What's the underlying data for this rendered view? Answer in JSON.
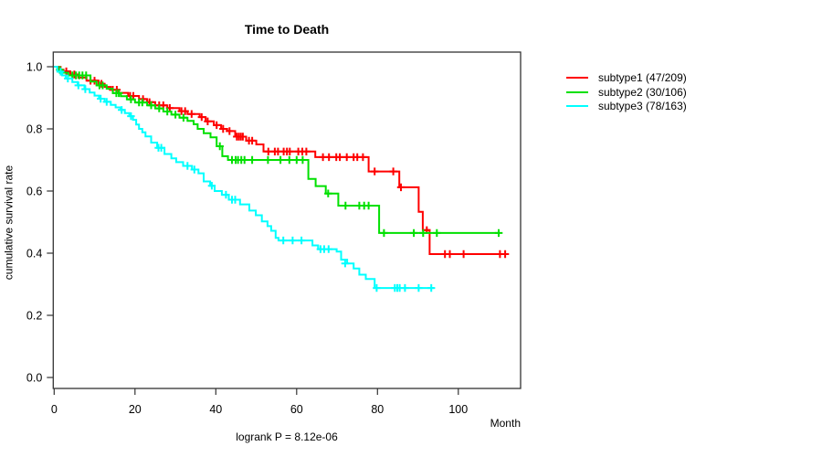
{
  "chart_data": {
    "type": "line",
    "subtype": "kaplan-meier-step",
    "title": "Time to Death",
    "xlabel": "Month",
    "ylabel": "cumulative survival rate",
    "annotation": "logrank P = 8.12e-06",
    "x_ticks": [
      0,
      20,
      40,
      60,
      80,
      100
    ],
    "y_ticks": [
      1.0,
      0.8,
      0.6,
      0.4,
      0.2,
      0.0
    ],
    "xlim": [
      0,
      115
    ],
    "ylim": [
      0,
      1.02
    ],
    "grid": false,
    "legend_position": "right",
    "series": [
      {
        "name": "subtype1",
        "legend_label": "subtype1 (47/209)",
        "events": 47,
        "n": 209,
        "color": "#ff0000",
        "end_month": 112.1,
        "steps": [
          [
            0,
            1.0
          ],
          [
            1,
            0.99
          ],
          [
            2.3,
            0.985
          ],
          [
            4,
            0.975
          ],
          [
            6,
            0.965
          ],
          [
            8,
            0.955
          ],
          [
            11,
            0.945
          ],
          [
            12.5,
            0.935
          ],
          [
            14,
            0.926
          ],
          [
            16,
            0.916
          ],
          [
            18.3,
            0.906
          ],
          [
            21,
            0.896
          ],
          [
            23,
            0.886
          ],
          [
            25,
            0.876
          ],
          [
            28,
            0.867
          ],
          [
            31,
            0.857
          ],
          [
            33,
            0.848
          ],
          [
            36,
            0.838
          ],
          [
            37.5,
            0.824
          ],
          [
            39.5,
            0.812
          ],
          [
            41.3,
            0.8
          ],
          [
            42.8,
            0.793
          ],
          [
            44.8,
            0.775
          ],
          [
            47.5,
            0.762
          ],
          [
            50,
            0.75
          ],
          [
            51.8,
            0.727
          ],
          [
            64.6,
            0.709
          ],
          [
            77.8,
            0.663
          ],
          [
            85.4,
            0.612
          ],
          [
            90.2,
            0.533
          ],
          [
            91.2,
            0.474
          ],
          [
            92.9,
            0.397
          ]
        ],
        "censors": [
          [
            1.6,
            0.99
          ],
          [
            3,
            0.985
          ],
          [
            5,
            0.975
          ],
          [
            9,
            0.955
          ],
          [
            10,
            0.955
          ],
          [
            11.7,
            0.945
          ],
          [
            14.5,
            0.926
          ],
          [
            15.5,
            0.926
          ],
          [
            18.8,
            0.906
          ],
          [
            19.6,
            0.906
          ],
          [
            22,
            0.896
          ],
          [
            23.6,
            0.886
          ],
          [
            26,
            0.876
          ],
          [
            27,
            0.876
          ],
          [
            28.6,
            0.867
          ],
          [
            31.5,
            0.857
          ],
          [
            32.4,
            0.857
          ],
          [
            34,
            0.848
          ],
          [
            36.5,
            0.838
          ],
          [
            38,
            0.824
          ],
          [
            40.2,
            0.812
          ],
          [
            41.8,
            0.8
          ],
          [
            43.4,
            0.793
          ],
          [
            45.2,
            0.775
          ],
          [
            45.7,
            0.775
          ],
          [
            46.2,
            0.775
          ],
          [
            46.7,
            0.775
          ],
          [
            48.2,
            0.762
          ],
          [
            49,
            0.762
          ],
          [
            53,
            0.727
          ],
          [
            54.6,
            0.727
          ],
          [
            55.4,
            0.727
          ],
          [
            56.8,
            0.727
          ],
          [
            57.6,
            0.727
          ],
          [
            58.3,
            0.727
          ],
          [
            60.4,
            0.727
          ],
          [
            61.4,
            0.727
          ],
          [
            62.4,
            0.727
          ],
          [
            66.5,
            0.709
          ],
          [
            68,
            0.709
          ],
          [
            69.8,
            0.709
          ],
          [
            70.7,
            0.709
          ],
          [
            72.4,
            0.709
          ],
          [
            74.1,
            0.709
          ],
          [
            75,
            0.709
          ],
          [
            76.4,
            0.709
          ],
          [
            79.3,
            0.663
          ],
          [
            83.9,
            0.663
          ],
          [
            85.8,
            0.612
          ],
          [
            92.2,
            0.474
          ],
          [
            96.7,
            0.397
          ],
          [
            97.9,
            0.397
          ],
          [
            101.3,
            0.397
          ],
          [
            110.3,
            0.397
          ],
          [
            111.6,
            0.397
          ]
        ]
      },
      {
        "name": "subtype2",
        "legend_label": "subtype2 (30/106)",
        "events": 30,
        "n": 106,
        "color": "#00e000",
        "end_month": 110.3,
        "steps": [
          [
            0,
            1.0
          ],
          [
            0.8,
            0.99
          ],
          [
            2,
            0.981
          ],
          [
            3.5,
            0.972
          ],
          [
            9,
            0.952
          ],
          [
            10.5,
            0.94
          ],
          [
            13,
            0.929
          ],
          [
            14.5,
            0.915
          ],
          [
            16.5,
            0.905
          ],
          [
            18,
            0.895
          ],
          [
            20,
            0.885
          ],
          [
            23,
            0.876
          ],
          [
            25,
            0.866
          ],
          [
            27,
            0.856
          ],
          [
            29,
            0.846
          ],
          [
            31,
            0.836
          ],
          [
            33,
            0.826
          ],
          [
            34.5,
            0.815
          ],
          [
            35.5,
            0.8
          ],
          [
            37,
            0.786
          ],
          [
            38.7,
            0.773
          ],
          [
            40.2,
            0.744
          ],
          [
            41.6,
            0.712
          ],
          [
            43,
            0.7
          ],
          [
            62.9,
            0.639
          ],
          [
            64.7,
            0.616
          ],
          [
            67.2,
            0.592
          ],
          [
            70.3,
            0.553
          ],
          [
            80.4,
            0.465
          ]
        ],
        "censors": [
          [
            1.4,
            0.99
          ],
          [
            4.5,
            0.972
          ],
          [
            5.4,
            0.972
          ],
          [
            6.2,
            0.972
          ],
          [
            7,
            0.972
          ],
          [
            7.9,
            0.972
          ],
          [
            11.2,
            0.94
          ],
          [
            12,
            0.94
          ],
          [
            15.4,
            0.915
          ],
          [
            16,
            0.915
          ],
          [
            19,
            0.895
          ],
          [
            21,
            0.885
          ],
          [
            21.8,
            0.885
          ],
          [
            24,
            0.876
          ],
          [
            26,
            0.866
          ],
          [
            28,
            0.856
          ],
          [
            30,
            0.846
          ],
          [
            32,
            0.836
          ],
          [
            41,
            0.744
          ],
          [
            44,
            0.7
          ],
          [
            44.9,
            0.7
          ],
          [
            45.5,
            0.7
          ],
          [
            46.3,
            0.7
          ],
          [
            47.1,
            0.7
          ],
          [
            49,
            0.7
          ],
          [
            52.9,
            0.7
          ],
          [
            56,
            0.7
          ],
          [
            58.2,
            0.7
          ],
          [
            60,
            0.7
          ],
          [
            61.5,
            0.7
          ],
          [
            67.8,
            0.592
          ],
          [
            72.1,
            0.553
          ],
          [
            75.5,
            0.553
          ],
          [
            76.7,
            0.553
          ],
          [
            77.8,
            0.553
          ],
          [
            81.6,
            0.465
          ],
          [
            89,
            0.465
          ],
          [
            91.3,
            0.465
          ],
          [
            94.7,
            0.465
          ],
          [
            110,
            0.465
          ]
        ]
      },
      {
        "name": "subtype3",
        "legend_label": "subtype3 (78/163)",
        "events": 78,
        "n": 163,
        "color": "#00ffff",
        "end_month": 94,
        "steps": [
          [
            0,
            1.0
          ],
          [
            0.8,
            0.984
          ],
          [
            2,
            0.972
          ],
          [
            2.9,
            0.962
          ],
          [
            4.5,
            0.951
          ],
          [
            5.8,
            0.94
          ],
          [
            7.5,
            0.928
          ],
          [
            8.8,
            0.917
          ],
          [
            10,
            0.907
          ],
          [
            11.1,
            0.897
          ],
          [
            12.5,
            0.887
          ],
          [
            14,
            0.877
          ],
          [
            15.2,
            0.869
          ],
          [
            16.4,
            0.861
          ],
          [
            17.5,
            0.851
          ],
          [
            18.6,
            0.841
          ],
          [
            19.5,
            0.829
          ],
          [
            20.3,
            0.814
          ],
          [
            21,
            0.8
          ],
          [
            21.8,
            0.789
          ],
          [
            22.6,
            0.776
          ],
          [
            24,
            0.756
          ],
          [
            25.5,
            0.739
          ],
          [
            27.3,
            0.719
          ],
          [
            29,
            0.705
          ],
          [
            30.2,
            0.693
          ],
          [
            31.9,
            0.681
          ],
          [
            34.1,
            0.669
          ],
          [
            35.7,
            0.657
          ],
          [
            37,
            0.631
          ],
          [
            38.6,
            0.617
          ],
          [
            39.7,
            0.6
          ],
          [
            41.5,
            0.588
          ],
          [
            43.2,
            0.572
          ],
          [
            46,
            0.557
          ],
          [
            48.3,
            0.537
          ],
          [
            49.9,
            0.522
          ],
          [
            51.4,
            0.502
          ],
          [
            52.8,
            0.487
          ],
          [
            53.7,
            0.472
          ],
          [
            54.8,
            0.449
          ],
          [
            55.5,
            0.441
          ],
          [
            63.9,
            0.425
          ],
          [
            65.3,
            0.413
          ],
          [
            69.9,
            0.405
          ],
          [
            71,
            0.379
          ],
          [
            72.5,
            0.367
          ],
          [
            74.1,
            0.351
          ],
          [
            75.5,
            0.331
          ],
          [
            77.1,
            0.317
          ],
          [
            79.3,
            0.288
          ]
        ],
        "censors": [
          [
            1.6,
            0.984
          ],
          [
            3.4,
            0.962
          ],
          [
            6,
            0.94
          ],
          [
            7.7,
            0.928
          ],
          [
            11.5,
            0.897
          ],
          [
            13,
            0.887
          ],
          [
            16.7,
            0.861
          ],
          [
            19,
            0.841
          ],
          [
            25.8,
            0.739
          ],
          [
            26.5,
            0.739
          ],
          [
            33,
            0.681
          ],
          [
            34.7,
            0.669
          ],
          [
            39,
            0.617
          ],
          [
            42.5,
            0.588
          ],
          [
            44,
            0.572
          ],
          [
            44.8,
            0.572
          ],
          [
            56.7,
            0.441
          ],
          [
            59,
            0.441
          ],
          [
            61.2,
            0.441
          ],
          [
            65.9,
            0.413
          ],
          [
            66.8,
            0.413
          ],
          [
            67.9,
            0.413
          ],
          [
            72,
            0.367
          ],
          [
            79.8,
            0.288
          ],
          [
            84.3,
            0.288
          ],
          [
            84.9,
            0.288
          ],
          [
            85.5,
            0.288
          ],
          [
            86.8,
            0.288
          ],
          [
            90.2,
            0.288
          ],
          [
            93.3,
            0.288
          ]
        ]
      }
    ]
  }
}
